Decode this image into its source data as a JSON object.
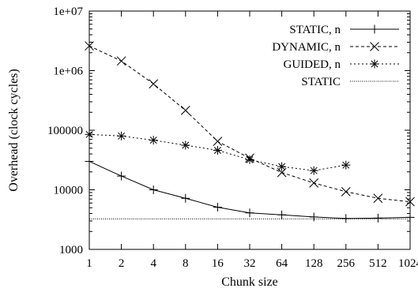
{
  "chart_data": {
    "type": "line",
    "xlabel": "Chunk size",
    "ylabel": "Overhead (clock cycles)",
    "x_scale": "log2",
    "y_scale": "log10",
    "xlim": [
      1,
      1024
    ],
    "ylim": [
      1000,
      10000000
    ],
    "x_ticks": [
      "1",
      "2",
      "4",
      "8",
      "16",
      "32",
      "64",
      "128",
      "256",
      "512",
      "1024"
    ],
    "y_ticks": [
      "1000",
      "10000",
      "100000",
      "1e+06",
      "1e+07"
    ],
    "grid": false,
    "legend_position": "top-right",
    "series": [
      {
        "name": "STATIC, n",
        "line_style": "solid",
        "marker": "plus",
        "x": [
          1,
          2,
          4,
          8,
          16,
          32,
          64,
          128,
          256,
          512,
          1024
        ],
        "y": [
          30000,
          17000,
          10000,
          7200,
          5100,
          4100,
          3800,
          3500,
          3300,
          3350,
          3450
        ]
      },
      {
        "name": "DYNAMIC, n",
        "line_style": "dashed",
        "marker": "cross",
        "x": [
          1,
          2,
          4,
          8,
          16,
          32,
          64,
          128,
          256,
          512,
          1024
        ],
        "y": [
          2600000,
          1450000,
          600000,
          215000,
          65000,
          34000,
          19500,
          13000,
          9300,
          7200,
          6300
        ]
      },
      {
        "name": "GUIDED, n",
        "line_style": "dotted",
        "marker": "star",
        "x": [
          1,
          2,
          4,
          8,
          16,
          32,
          64,
          128,
          256
        ],
        "y": [
          85000,
          80000,
          68000,
          56000,
          46000,
          32000,
          24500,
          21000,
          26000
        ]
      },
      {
        "name": "STATIC",
        "line_style": "fine-dotted",
        "marker": "none",
        "x": [
          1,
          1024
        ],
        "y": [
          3250,
          3250
        ]
      }
    ]
  }
}
